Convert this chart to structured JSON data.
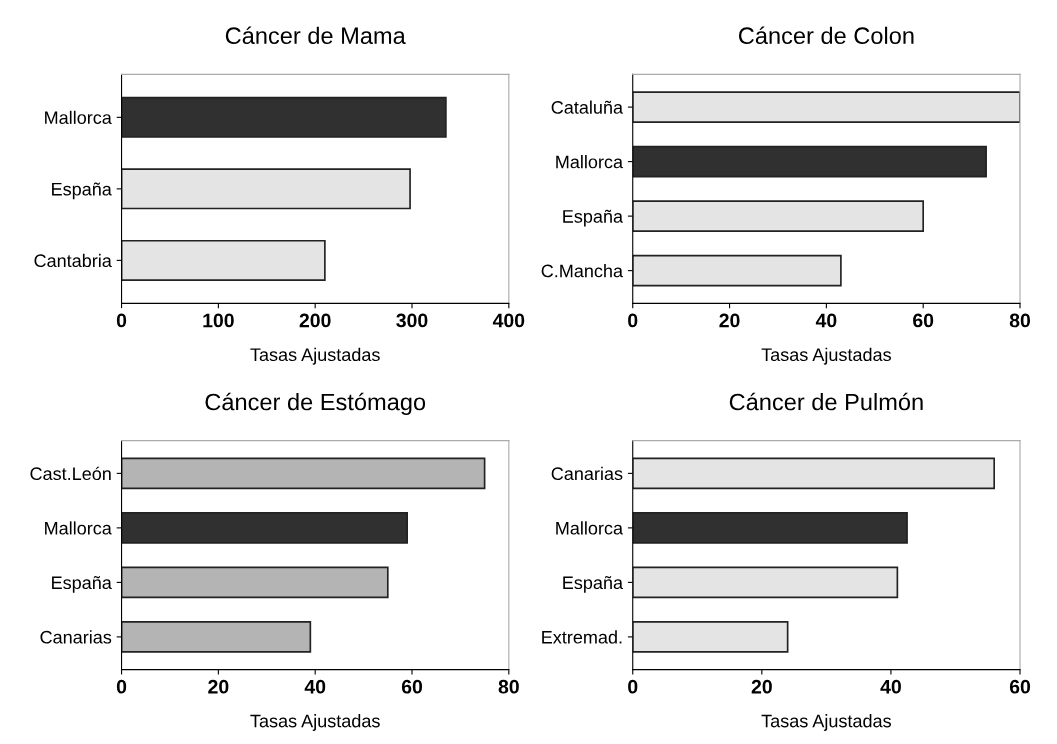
{
  "chart_data": [
    {
      "type": "bar",
      "orientation": "horizontal",
      "title": "Cáncer de Mama",
      "xlabel": "Tasas Ajustadas",
      "categories": [
        "Mallorca",
        "España",
        "Cantabria"
      ],
      "values": [
        335,
        298,
        210
      ],
      "colors": [
        "#303030",
        "#e4e4e4",
        "#e4e4e4"
      ],
      "xlim": [
        0,
        400
      ],
      "xticks": [
        0,
        100,
        200,
        300,
        400
      ],
      "grid": false
    },
    {
      "type": "bar",
      "orientation": "horizontal",
      "title": "Cáncer de Colon",
      "xlabel": "Tasas Ajustadas",
      "categories": [
        "Cataluña",
        "Mallorca",
        "España",
        "C.Mancha"
      ],
      "values": [
        80,
        73,
        60,
        43
      ],
      "colors": [
        "#e4e4e4",
        "#303030",
        "#e4e4e4",
        "#e4e4e4"
      ],
      "xlim": [
        0,
        80
      ],
      "xticks": [
        0,
        20,
        40,
        60,
        80
      ],
      "grid": false
    },
    {
      "type": "bar",
      "orientation": "horizontal",
      "title": "Cáncer de Estómago",
      "xlabel": "Tasas Ajustadas",
      "categories": [
        "Cast.León",
        "Mallorca",
        "España",
        "Canarias"
      ],
      "values": [
        75,
        59,
        55,
        39
      ],
      "colors": [
        "#b4b4b4",
        "#303030",
        "#b4b4b4",
        "#b4b4b4"
      ],
      "xlim": [
        0,
        80
      ],
      "xticks": [
        0,
        20,
        40,
        60,
        80
      ],
      "grid": false
    },
    {
      "type": "bar",
      "orientation": "horizontal",
      "title": "Cáncer de Pulmón",
      "xlabel": "Tasas Ajustadas",
      "categories": [
        "Canarias",
        "Mallorca",
        "España",
        "Extremad."
      ],
      "values": [
        56,
        42.5,
        41,
        24
      ],
      "colors": [
        "#e4e4e4",
        "#303030",
        "#e4e4e4",
        "#e4e4e4"
      ],
      "xlim": [
        0,
        60
      ],
      "xticks": [
        0,
        20,
        40,
        60
      ],
      "grid": false
    }
  ]
}
